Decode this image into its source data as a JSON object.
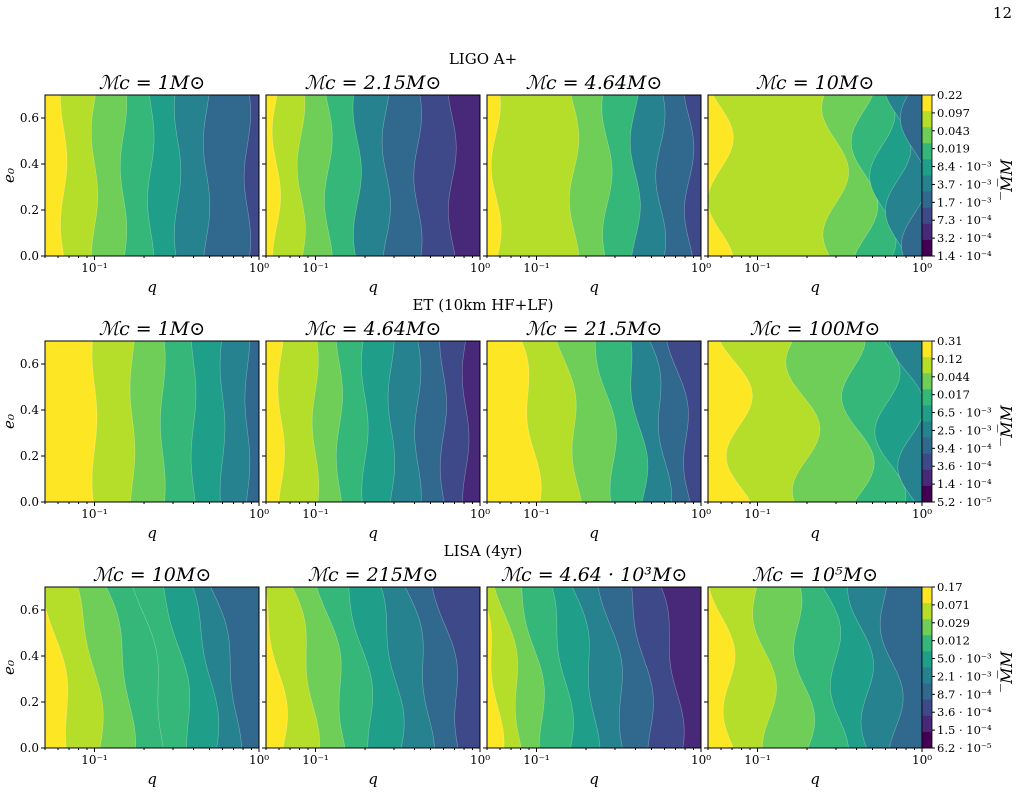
{
  "page": {
    "page_number": "12"
  },
  "chart_data": {
    "type": "contour",
    "x_scale": "log",
    "x_range": [
      0.05,
      1.0
    ],
    "y_range": [
      0.0,
      0.7
    ],
    "x_ticks": [
      0.1,
      1.0
    ],
    "x_tick_labels": [
      "10⁻¹",
      "10⁰"
    ],
    "y_ticks": [
      0.0,
      0.2,
      0.4,
      0.6
    ],
    "y_tick_labels": [
      "0.0",
      "0.2",
      "0.4",
      "0.6"
    ],
    "xlabel": "q",
    "ylabel": "e₀",
    "colorbar_label": "̅M̅M",
    "colormap": [
      "#440154",
      "#482878",
      "#3e4989",
      "#31688e",
      "#26828e",
      "#1f9e89",
      "#35b779",
      "#6ece58",
      "#b5de2b",
      "#fde725"
    ],
    "rows": [
      {
        "detector": "LIGO A+",
        "colorbar_ticks": [
          "0.22",
          "0.097",
          "0.043",
          "0.019",
          "8.4 · 10⁻³",
          "3.7 · 10⁻³",
          "1.7 · 10⁻³",
          "7.3 · 10⁻⁴",
          "3.2 · 10⁻⁴",
          "1.4 · 10⁻⁴"
        ],
        "panels": [
          {
            "title": "ℳc = 1M⊙",
            "levels": [
              0.065,
              0.1,
              0.15,
              0.22,
              0.32,
              0.48,
              0.85
            ],
            "tilt": 0.0,
            "wiggle": 0.02,
            "min_level": 2
          },
          {
            "title": "ℳc = 2.15M⊙",
            "levels": [
              0.058,
              0.082,
              0.12,
              0.18,
              0.27,
              0.42,
              0.68
            ],
            "tilt": 0.02,
            "wiggle": 0.025,
            "min_level": 1
          },
          {
            "title": "ℳc = 4.64M⊙",
            "levels": [
              0.057,
              0.17,
              0.27,
              0.4,
              0.57,
              0.85
            ],
            "tilt": 0.03,
            "wiggle": 0.03,
            "min_level": 2
          },
          {
            "title": "ℳc = 10M⊙",
            "levels": [
              0.06,
              0.3,
              0.45,
              0.58,
              0.72,
              0.9
            ],
            "tilt": 0.05,
            "wiggle": 0.08,
            "min_level": 3
          }
        ]
      },
      {
        "detector": "ET (10km HF+LF)",
        "colorbar_ticks": [
          "0.31",
          "0.12",
          "0.044",
          "0.017",
          "6.5 · 10⁻³",
          "2.5 · 10⁻³",
          "9.4 · 10⁻⁴",
          "3.6 · 10⁻⁴",
          "1.4 · 10⁻⁴",
          "5.2 · 10⁻⁵"
        ],
        "panels": [
          {
            "title": "ℳc = 1M⊙",
            "levels": [
              0.1,
              0.17,
              0.26,
              0.4,
              0.6,
              0.85
            ],
            "tilt": 0.0,
            "wiggle": 0.015,
            "min_level": 3
          },
          {
            "title": "ℳc = 4.64M⊙",
            "levels": [
              0.062,
              0.1,
              0.14,
              0.2,
              0.29,
              0.42,
              0.6,
              0.82
            ],
            "tilt": 0.02,
            "wiggle": 0.02,
            "min_level": 1
          },
          {
            "title": "ℳc = 21.5M⊙",
            "levels": [
              0.1,
              0.18,
              0.3,
              0.45,
              0.62,
              0.85
            ],
            "tilt": 0.6,
            "wiggle": 0.03,
            "min_level": 2
          },
          {
            "title": "ℳc = 100M⊙",
            "levels": [
              0.08,
              0.2,
              0.42,
              0.65,
              0.88
            ],
            "tilt": 0.3,
            "wiggle": 0.09,
            "min_level": 4
          }
        ]
      },
      {
        "detector": "LISA (4yr)",
        "colorbar_ticks": [
          "0.17",
          "0.071",
          "0.029",
          "0.012",
          "5.0 · 10⁻³",
          "2.1 · 10⁻³",
          "8.7 · 10⁻⁴",
          "3.6 · 10⁻⁴",
          "1.5 · 10⁻⁴",
          "6.2 · 10⁻⁵"
        ],
        "panels": [
          {
            "title": "ℳc = 10M⊙",
            "levels": [
              0.07,
              0.11,
              0.17,
              0.26,
              0.38,
              0.55,
              0.75
            ],
            "tilt": 0.9,
            "wiggle": 0.02,
            "min_level": 3
          },
          {
            "title": "ℳc = 215M⊙",
            "levels": [
              0.065,
              0.1,
              0.15,
              0.22,
              0.33,
              0.5,
              0.75
            ],
            "tilt": 0.8,
            "wiggle": 0.025,
            "min_level": 2
          },
          {
            "title": "ℳc = 4.64 · 10³M⊙",
            "levels": [
              0.06,
              0.08,
              0.11,
              0.16,
              0.23,
              0.34,
              0.5,
              0.75
            ],
            "tilt": 0.75,
            "wiggle": 0.025,
            "min_level": 1
          },
          {
            "title": "ℳc = 10⁵M⊙",
            "levels": [
              0.07,
              0.12,
              0.2,
              0.32,
              0.48,
              0.7
            ],
            "tilt": 0.5,
            "wiggle": 0.05,
            "min_level": 3
          }
        ]
      }
    ]
  }
}
